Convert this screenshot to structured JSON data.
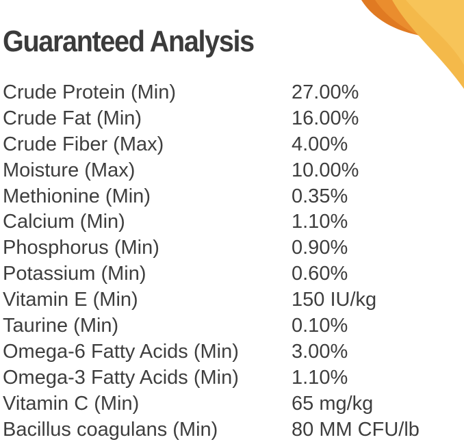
{
  "title": "Guaranteed Analysis",
  "colors": {
    "text": "#3e3e3e",
    "accent_orange": "#e8822a",
    "accent_yellow": "#f2b84a"
  },
  "rows": [
    {
      "label": "Crude Protein (Min)",
      "value": "27.00%"
    },
    {
      "label": "Crude Fat (Min)",
      "value": "16.00%"
    },
    {
      "label": "Crude Fiber (Max)",
      "value": "4.00%"
    },
    {
      "label": "Moisture (Max)",
      "value": "10.00%"
    },
    {
      "label": "Methionine (Min)",
      "value": "0.35%"
    },
    {
      "label": "Calcium (Min)",
      "value": "1.10%"
    },
    {
      "label": "Phosphorus (Min)",
      "value": "0.90%"
    },
    {
      "label": "Potassium (Min)",
      "value": "0.60%"
    },
    {
      "label": "Vitamin E (Min)",
      "value": "150 IU/kg"
    },
    {
      "label": "Taurine (Min)",
      "value": "0.10%"
    },
    {
      "label": "Omega-6 Fatty Acids (Min)",
      "value": "3.00%"
    },
    {
      "label": "Omega-3 Fatty Acids (Min)",
      "value": "1.10%"
    },
    {
      "label": "Vitamin C (Min)",
      "value": "65 mg/kg"
    },
    {
      "label": "Bacillus coagulans (Min)",
      "value": "80 MM CFU/lb"
    }
  ]
}
